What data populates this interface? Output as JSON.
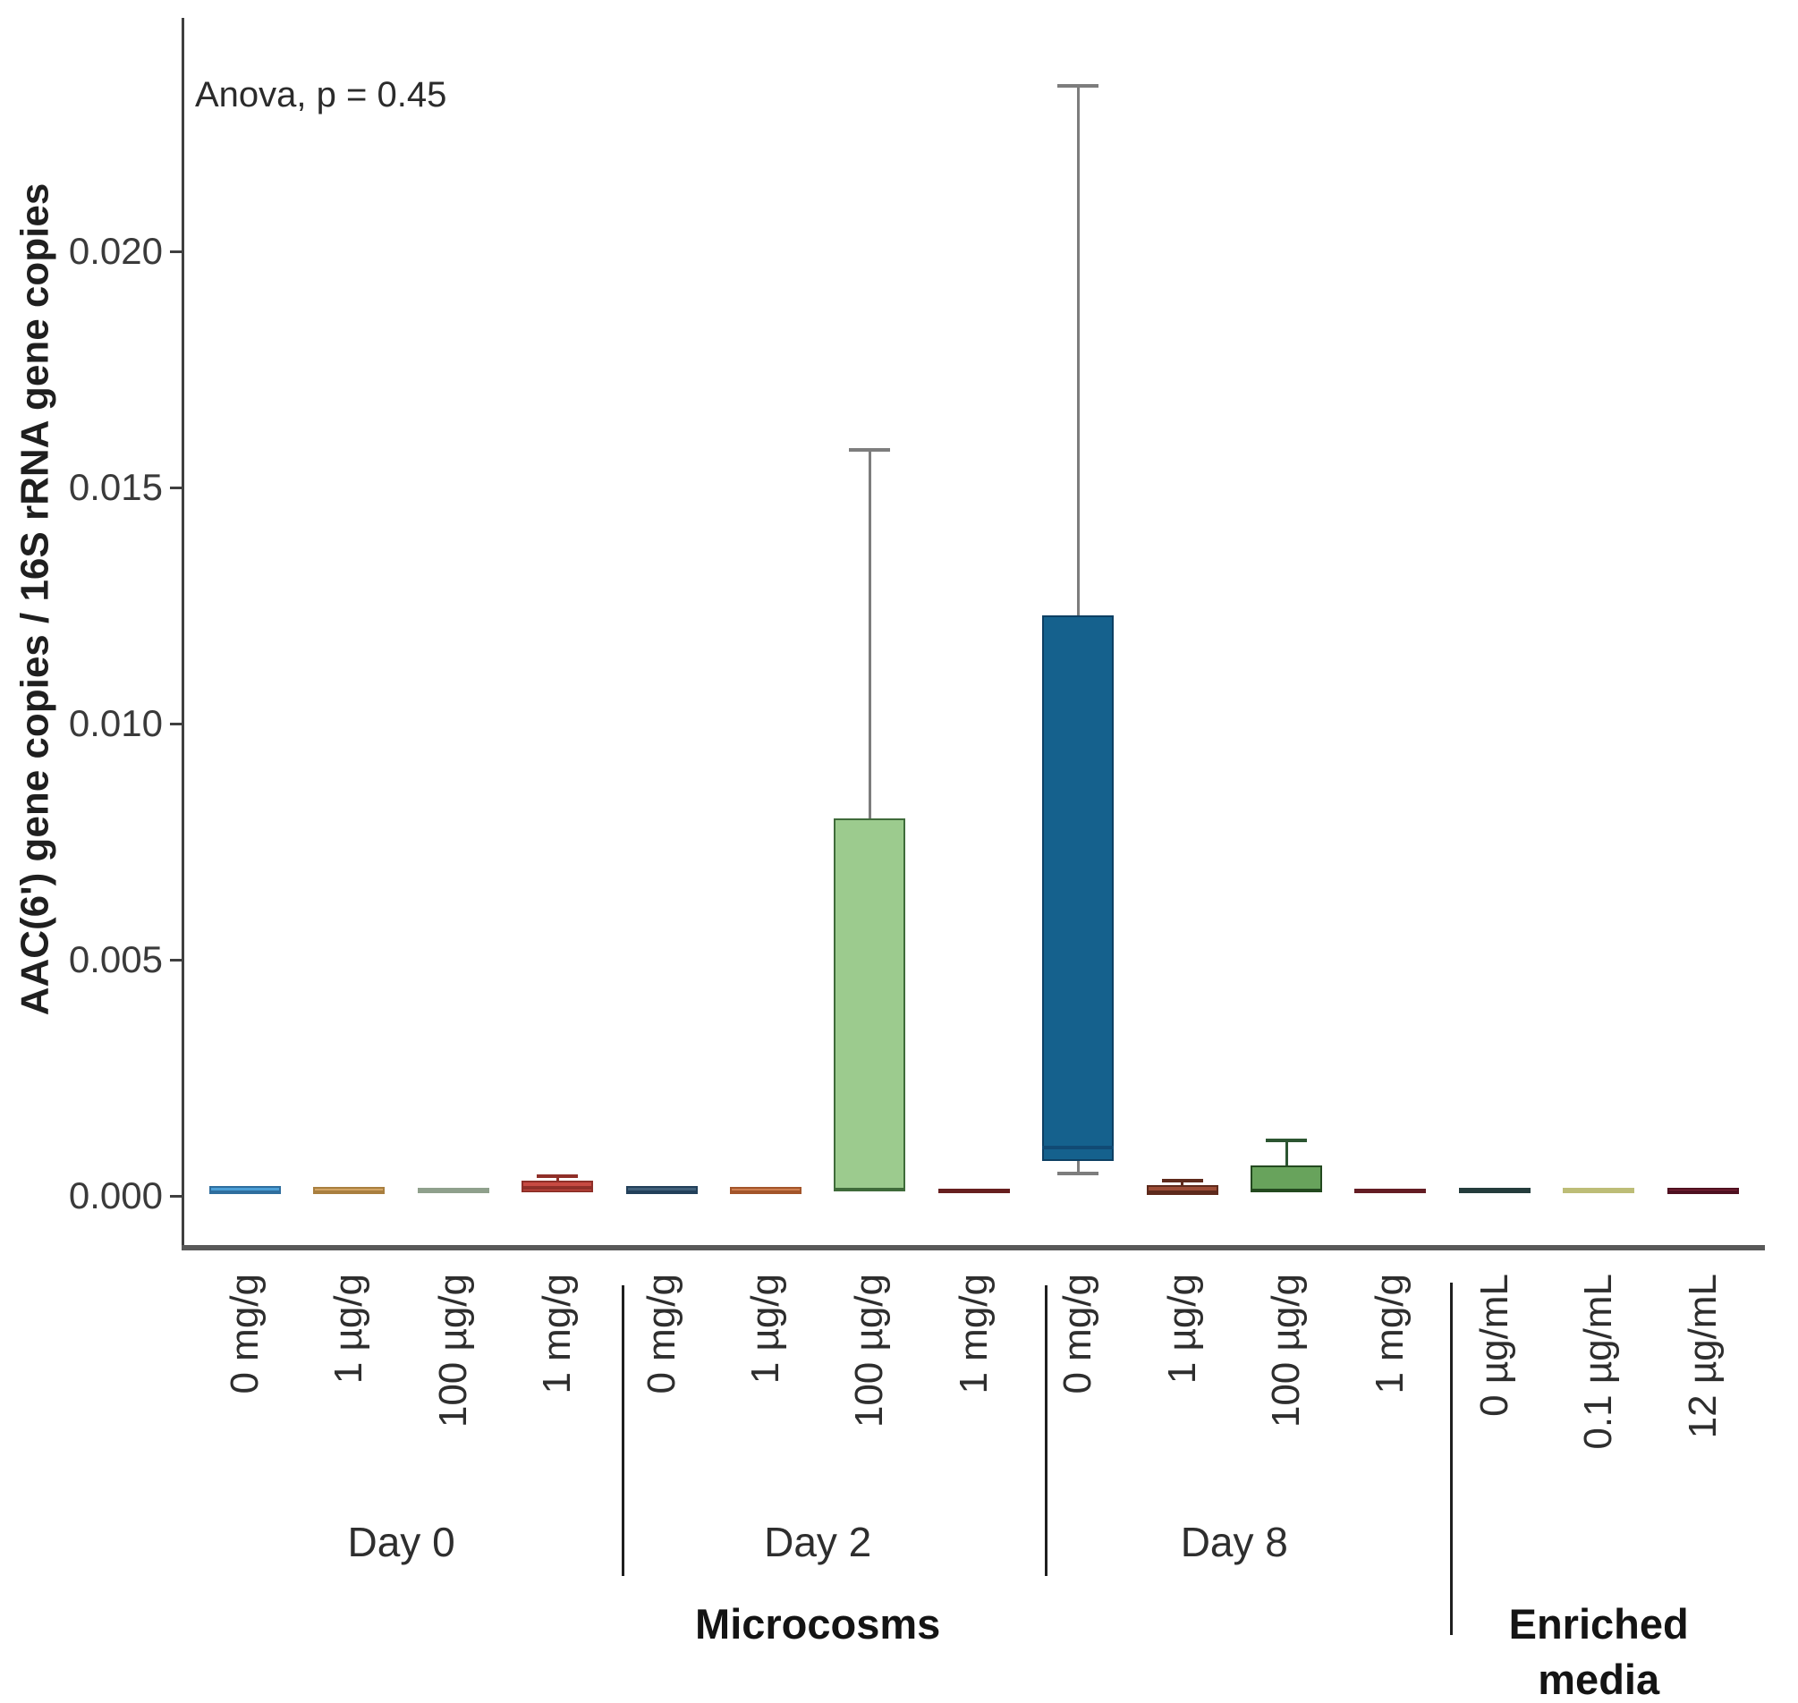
{
  "chart_data": {
    "type": "boxplot",
    "annotation": "Anova, p = 0.45",
    "ylabel": "AAC(6') gene copies / 16S rRNA gene copies",
    "xlabel": "",
    "title": "",
    "ylim": [
      0,
      0.0249
    ],
    "grid": false,
    "legend": "none",
    "y_ticks": {
      "values": [
        0,
        0.005,
        0.01,
        0.015,
        0.02
      ],
      "labels": [
        "0.000",
        "0.005",
        "0.010",
        "0.015",
        "0.020"
      ]
    },
    "boxes": [
      {
        "label": "0 mg/g",
        "group": "Microcosms Day 0",
        "color": "#4c9fd6",
        "border": "#2f6e9e",
        "q1": 4e-05,
        "median": 0.0001,
        "q3": 0.0002
      },
      {
        "label": "1 µg/g",
        "group": "Microcosms Day 0",
        "color": "#d2a464",
        "border": "#a97f3f",
        "q1": 4e-05,
        "median": 0.0001,
        "q3": 0.00019
      },
      {
        "label": "100 µg/g",
        "group": "Microcosms Day 0",
        "color": "#aeb8a6",
        "border": "#8fa08c",
        "q1": 5e-05,
        "median": 0.0001,
        "q3": 0.00017
      },
      {
        "label": "1 mg/g",
        "group": "Microcosms Day 0",
        "color": "#c74a42",
        "border": "#8f2f28",
        "q1": 8e-05,
        "median": 0.0002,
        "q3": 0.00032,
        "whisker_high": 0.00042,
        "whisker_color": "#8f2f28"
      },
      {
        "label": "0 mg/g",
        "group": "Microcosms Day 2",
        "color": "#41607a",
        "border": "#22405a",
        "q1": 4e-05,
        "median": 0.0001,
        "q3": 0.00021
      },
      {
        "label": "1 µg/g",
        "group": "Microcosms Day 2",
        "color": "#cf7f50",
        "border": "#a3552a",
        "q1": 4e-05,
        "median": 0.0001,
        "q3": 0.00019
      },
      {
        "label": "100 µg/g",
        "group": "Microcosms Day 2",
        "color": "#9ccb8e",
        "border": "#3f6b3a",
        "q1": 0.0001,
        "median": 0.00015,
        "q3": 0.008,
        "whisker_high": 0.0158,
        "whisker_color": "#7d7d7d"
      },
      {
        "label": "1 mg/g",
        "group": "Microcosms Day 2",
        "color": "#8f3c3c",
        "border": "#671f1f",
        "q1": 6e-05,
        "median": 0.0001,
        "q3": 0.00015
      },
      {
        "label": "0 mg/g",
        "group": "Microcosms Day 8",
        "color": "#15618d",
        "border": "#0d3f63",
        "median_color": "#114a74",
        "q1": 0.00074,
        "median": 0.00106,
        "q3": 0.0123,
        "whisker_low": 0.00047,
        "whisker_high": 0.0235,
        "whisker_color": "#7d7d7d"
      },
      {
        "label": "1 µg/g",
        "group": "Microcosms Day 8",
        "color": "#9c4c36",
        "border": "#5e2a1c",
        "q1": 2e-05,
        "median": 0.00012,
        "q3": 0.00023,
        "whisker_high": 0.00032,
        "whisker_color": "#5e2a1c"
      },
      {
        "label": "100 µg/g",
        "group": "Microcosms Day 8",
        "color": "#68a35c",
        "border": "#23491f",
        "q1": 8e-05,
        "median": 0.00013,
        "q3": 0.00064,
        "whisker_high": 0.00117,
        "whisker_color": "#2c5531"
      },
      {
        "label": "1 mg/g",
        "group": "Microcosms Day 8",
        "color": "#97303a",
        "border": "#641d24",
        "q1": 6e-05,
        "median": 0.0001,
        "q3": 0.00015
      },
      {
        "label": "0 µg/mL",
        "group": "Enriched media",
        "color": "#425d5d",
        "border": "#243c3c",
        "q1": 5e-05,
        "median": 0.0001,
        "q3": 0.00017
      },
      {
        "label": "0.1 µg/mL",
        "group": "Enriched media",
        "color": "#e4e4a4",
        "border": "#bdbd77",
        "q1": 5e-05,
        "median": 0.0001,
        "q3": 0.00017
      },
      {
        "label": "12 µg/mL",
        "group": "Enriched media",
        "color": "#7d2438",
        "border": "#4f1020",
        "q1": 4e-05,
        "median": 0.0001,
        "q3": 0.00017
      }
    ],
    "day_groups": [
      {
        "label": "Day 0",
        "start": 0,
        "end": 3
      },
      {
        "label": "Day 2",
        "start": 4,
        "end": 7
      },
      {
        "label": "Day 8",
        "start": 8,
        "end": 11
      }
    ],
    "bottom_groups": [
      {
        "lines": [
          "Microcosms"
        ],
        "start": 0,
        "end": 11
      },
      {
        "lines": [
          "Enriched",
          "media"
        ],
        "start": 12,
        "end": 14
      }
    ]
  }
}
